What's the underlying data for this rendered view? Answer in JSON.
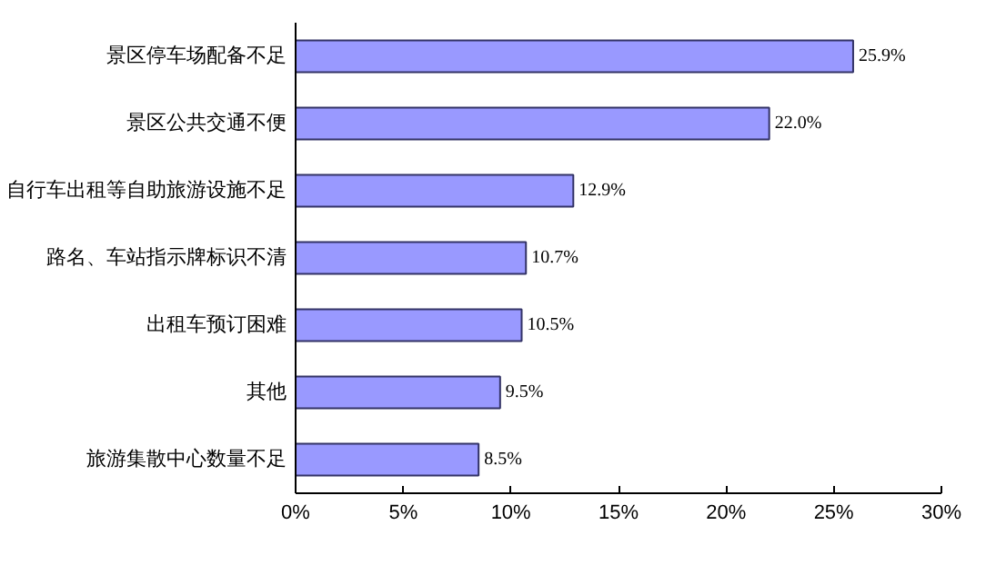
{
  "chart_data": {
    "type": "bar",
    "orientation": "horizontal",
    "categories": [
      "景区停车场配备不足",
      "景区公共交通不便",
      "自行车出租等自助旅游设施不足",
      "路名、车站指示牌标识不清",
      "出租车预订困难",
      "其他",
      "旅游集散中心数量不足"
    ],
    "values": [
      25.9,
      22.0,
      12.9,
      10.7,
      10.5,
      9.5,
      8.5
    ],
    "value_labels": [
      "25.9%",
      "22.0%",
      "12.9%",
      "10.7%",
      "10.5%",
      "9.5%",
      "8.5%"
    ],
    "color": "#9999ff",
    "xlim": [
      0,
      30
    ],
    "xticks": [
      {
        "value": 0,
        "label": "0%"
      },
      {
        "value": 5,
        "label": "5%"
      },
      {
        "value": 10,
        "label": "10%"
      },
      {
        "value": 15,
        "label": "15%"
      },
      {
        "value": 20,
        "label": "20%"
      },
      {
        "value": 25,
        "label": "25%"
      },
      {
        "value": 30,
        "label": "30%"
      }
    ],
    "grid": false
  }
}
